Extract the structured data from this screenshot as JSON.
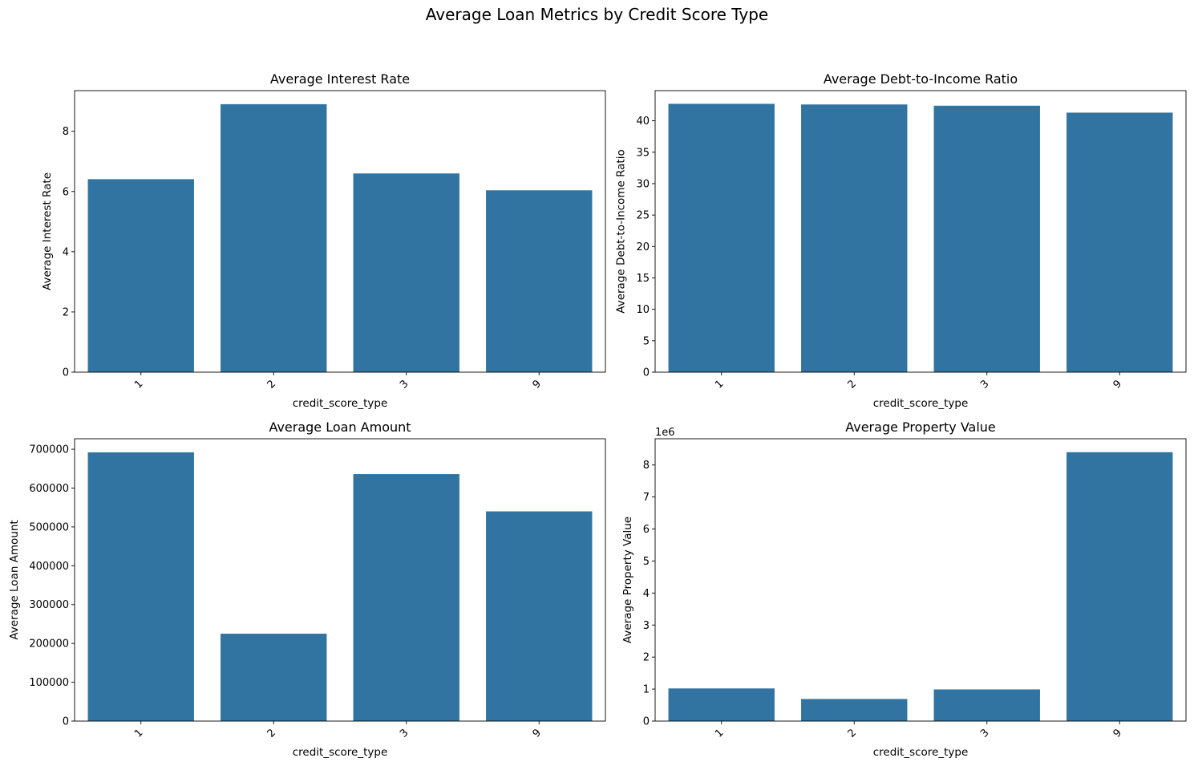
{
  "figure": {
    "suptitle": "Average Loan Metrics by Credit Score Type",
    "bar_color": "#3274a1"
  },
  "chart_data": [
    {
      "type": "bar",
      "title": "Average Interest Rate",
      "xlabel": "credit_score_type",
      "ylabel": "Average Interest Rate",
      "categories": [
        "1",
        "2",
        "3",
        "9"
      ],
      "values": [
        6.41,
        8.9,
        6.6,
        6.04
      ],
      "ylim": [
        0,
        9.35
      ],
      "yticks": [
        0,
        2,
        4,
        6,
        8
      ],
      "ytick_labels": [
        "0",
        "2",
        "4",
        "6",
        "8"
      ],
      "offset_text": ""
    },
    {
      "type": "bar",
      "title": "Average Debt-to-Income Ratio",
      "xlabel": "credit_score_type",
      "ylabel": "Average Debt-to-Income Ratio",
      "categories": [
        "1",
        "2",
        "3",
        "9"
      ],
      "values": [
        42.7,
        42.6,
        42.4,
        41.3
      ],
      "ylim": [
        0,
        44.8
      ],
      "yticks": [
        0,
        5,
        10,
        15,
        20,
        25,
        30,
        35,
        40
      ],
      "ytick_labels": [
        "0",
        "5",
        "10",
        "15",
        "20",
        "25",
        "30",
        "35",
        "40"
      ],
      "offset_text": ""
    },
    {
      "type": "bar",
      "title": "Average Loan Amount",
      "xlabel": "credit_score_type",
      "ylabel": "Average Loan Amount",
      "categories": [
        "1",
        "2",
        "3",
        "9"
      ],
      "values": [
        692000,
        225000,
        636000,
        540000
      ],
      "ylim": [
        0,
        727000
      ],
      "yticks": [
        0,
        100000,
        200000,
        300000,
        400000,
        500000,
        600000,
        700000
      ],
      "ytick_labels": [
        "0",
        "100000",
        "200000",
        "300000",
        "400000",
        "500000",
        "600000",
        "700000"
      ],
      "offset_text": ""
    },
    {
      "type": "bar",
      "title": "Average Property Value",
      "xlabel": "credit_score_type",
      "ylabel": "Average Property Value",
      "categories": [
        "1",
        "2",
        "3",
        "9"
      ],
      "values": [
        1020000,
        690000,
        990000,
        8400000
      ],
      "ylim": [
        0,
        8820000
      ],
      "yticks": [
        0,
        1000000,
        2000000,
        3000000,
        4000000,
        5000000,
        6000000,
        7000000,
        8000000
      ],
      "ytick_labels": [
        "0",
        "1",
        "2",
        "3",
        "4",
        "5",
        "6",
        "7",
        "8"
      ],
      "offset_text": "1e6"
    }
  ]
}
